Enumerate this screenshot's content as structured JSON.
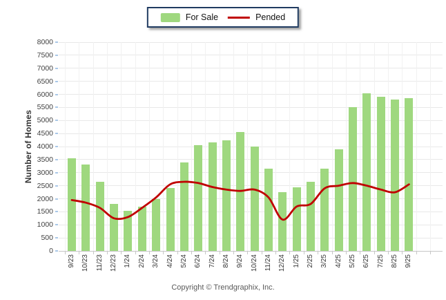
{
  "legend": {
    "items": [
      {
        "label": "For Sale",
        "swatch": "bar-swatch",
        "color": "#9fd87f"
      },
      {
        "label": "Pended",
        "swatch": "line-swatch",
        "color": "#c00000"
      }
    ]
  },
  "footer": {
    "copyright": "Copyright © Trendgraphix, Inc."
  },
  "colors": {
    "bar_green": "#9fd87f",
    "line_red": "#c00000",
    "grid": "#e8e8e8",
    "legend_border": "#1f3a60",
    "y_tick_blue": "#a9c7e7"
  },
  "chart_data": {
    "type": "bar",
    "title": "",
    "categories": [
      "9/23",
      "10/23",
      "11/23",
      "12/23",
      "1/24",
      "2/24",
      "3/24",
      "4/24",
      "5/24",
      "6/24",
      "7/24",
      "8/24",
      "9/24",
      "10/24",
      "11/24",
      "12/24",
      "1/25",
      "2/25",
      "3/25",
      "4/25",
      "5/25",
      "6/25",
      "7/25",
      "8/25",
      "9/25"
    ],
    "series": [
      {
        "name": "For Sale",
        "type": "bar",
        "color": "#9fd87f",
        "values": [
          3550,
          3300,
          2650,
          1800,
          1550,
          1700,
          2000,
          2400,
          3400,
          4050,
          4150,
          4250,
          4550,
          4000,
          3150,
          2250,
          2450,
          2650,
          3150,
          3900,
          5500,
          6050,
          5900,
          5800,
          5850
        ]
      },
      {
        "name": "Pended",
        "type": "line",
        "color": "#c00000",
        "values": [
          1950,
          1850,
          1650,
          1250,
          1300,
          1650,
          2050,
          2550,
          2650,
          2600,
          2450,
          2350,
          2300,
          2350,
          2050,
          1200,
          1700,
          1800,
          2400,
          2500,
          2600,
          2500,
          2350,
          2250,
          2550
        ]
      }
    ],
    "xlabel": "",
    "ylabel": "Number of Homes",
    "ylim": [
      0,
      8000
    ],
    "ytick_step": 500,
    "grid": true,
    "legend_position": "top-center"
  }
}
